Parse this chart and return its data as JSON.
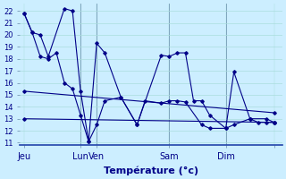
{
  "background_color": "#cceeff",
  "grid_color": "#aadddd",
  "line_color": "#000088",
  "xlabel": "Température (°c)",
  "ylim_min": 10.8,
  "ylim_max": 22.6,
  "xlim_min": -0.5,
  "xlim_max": 32.0,
  "yticks": [
    11,
    12,
    13,
    14,
    15,
    16,
    17,
    18,
    19,
    20,
    21,
    22
  ],
  "day_tick_x": [
    0,
    7,
    9,
    18,
    25,
    31
  ],
  "day_labels": [
    "Jeu",
    "Lun",
    "Ven",
    "Sam",
    "Dim",
    ""
  ],
  "vlines": [
    7,
    9,
    18,
    25
  ],
  "line1_x": [
    0,
    1,
    2,
    3,
    5,
    6,
    7,
    8,
    9,
    10,
    12,
    14,
    17,
    18,
    19,
    20,
    21,
    22,
    23,
    25,
    26,
    28,
    30,
    31
  ],
  "line1_y": [
    21.8,
    20.2,
    20.0,
    18.2,
    22.2,
    22.0,
    15.3,
    11.1,
    19.3,
    18.5,
    14.8,
    12.5,
    18.3,
    18.2,
    18.5,
    18.5,
    14.5,
    14.5,
    13.3,
    12.2,
    16.9,
    13.0,
    13.0,
    12.7
  ],
  "line2_x": [
    0,
    1,
    2,
    3,
    4,
    5,
    6,
    7,
    8,
    9,
    10,
    12,
    14,
    15,
    17,
    18,
    19,
    20,
    22,
    23,
    25,
    26,
    28,
    29,
    30,
    31
  ],
  "line2_y": [
    21.8,
    20.2,
    18.2,
    18.0,
    18.5,
    16.0,
    15.5,
    13.3,
    11.1,
    12.5,
    14.5,
    14.8,
    12.5,
    14.5,
    14.3,
    14.5,
    14.5,
    14.4,
    12.5,
    12.2,
    12.2,
    12.5,
    13.0,
    12.7,
    12.7,
    12.7
  ],
  "trend1_x": [
    0,
    31
  ],
  "trend1_y": [
    15.3,
    13.5
  ],
  "trend2_x": [
    0,
    31
  ],
  "trend2_y": [
    13.0,
    12.7
  ]
}
